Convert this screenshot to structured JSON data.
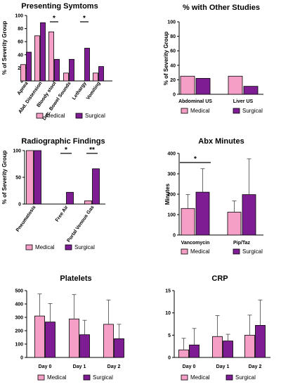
{
  "colors": {
    "medical": "#f59fc6",
    "surgical": "#7e1d93",
    "axis": "#000000"
  },
  "chart_data": [
    {
      "id": "symptoms",
      "type": "bar",
      "title": "Presenting Symtoms",
      "ylabel": "% of Severity Group",
      "ylim": [
        0,
        100
      ],
      "yticks": [
        0,
        20,
        40,
        60,
        80,
        100
      ],
      "categories": [
        "Apnea",
        "Abd. Distension",
        "Bloody stool",
        "Dec. Bowel Sounds",
        "Lethargy",
        "Vomiting"
      ],
      "series": [
        {
          "name": "Medical",
          "values": [
            25,
            69,
            75,
            12,
            0,
            12
          ]
        },
        {
          "name": "Surgical",
          "values": [
            44,
            89,
            33,
            33,
            50,
            22
          ]
        }
      ],
      "significance": [
        {
          "category": 2,
          "label": "*"
        },
        {
          "category": 4,
          "label": "*"
        }
      ],
      "legend": [
        "Medical",
        "Surgical"
      ]
    },
    {
      "id": "other-studies",
      "type": "bar",
      "title": "% with Other Studies",
      "ylabel": "% of Severity Group",
      "ylim": [
        0,
        100
      ],
      "yticks": [
        0,
        20,
        40,
        60,
        80,
        100
      ],
      "categories": [
        "Abdominal US",
        "Liver US"
      ],
      "series": [
        {
          "name": "Medical",
          "values": [
            25,
            25
          ]
        },
        {
          "name": "Surgical",
          "values": [
            22,
            11
          ]
        }
      ],
      "legend": [
        "Medical",
        "Surgical"
      ]
    },
    {
      "id": "radiographic",
      "type": "bar",
      "title": "Radiographic Findings",
      "ylabel": "% of Severity Group",
      "ylim": [
        0,
        100
      ],
      "yticks": [
        0,
        50,
        100
      ],
      "categories": [
        "Pneumatosis",
        "Free Air",
        "Portal Venous Gas"
      ],
      "series": [
        {
          "name": "Medical",
          "values": [
            100,
            0,
            6
          ]
        },
        {
          "name": "Surgical",
          "values": [
            100,
            22,
            66
          ]
        }
      ],
      "significance": [
        {
          "category": 1,
          "label": "*"
        },
        {
          "category": 2,
          "label": "**"
        }
      ],
      "legend": [
        "Medical",
        "Surgical"
      ]
    },
    {
      "id": "abx-minutes",
      "type": "bar",
      "title": "Abx Minutes",
      "ylabel": "Minutes",
      "ylim": [
        0,
        400
      ],
      "yticks": [
        0,
        100,
        200,
        300,
        400
      ],
      "categories": [
        "Vancomycin",
        "Pip/Taz"
      ],
      "series": [
        {
          "name": "Medical",
          "values": [
            130,
            112
          ],
          "error": [
            68,
            55
          ]
        },
        {
          "name": "Surgical",
          "values": [
            210,
            198
          ],
          "error": [
            115,
            175
          ]
        }
      ],
      "significance": [
        {
          "category": 0,
          "label": "*"
        }
      ],
      "legend": [
        "Medical",
        "Surgical"
      ]
    },
    {
      "id": "platelets",
      "type": "bar",
      "title": "Platelets",
      "ylabel": "",
      "ylim": [
        0,
        500
      ],
      "yticks": [
        0,
        100,
        200,
        300,
        400,
        500
      ],
      "categories": [
        "Day 0",
        "Day 1",
        "Day 2"
      ],
      "series": [
        {
          "name": "Medical",
          "values": [
            310,
            288,
            248
          ],
          "error": [
            165,
            182,
            182
          ]
        },
        {
          "name": "Surgical",
          "values": [
            265,
            170,
            140
          ],
          "error": [
            138,
            108,
            108
          ]
        }
      ],
      "legend": [
        "Medical",
        "Surgical"
      ]
    },
    {
      "id": "crp",
      "type": "bar",
      "title": "CRP",
      "ylabel": "",
      "ylim": [
        0,
        15
      ],
      "yticks": [
        0,
        5,
        10,
        15
      ],
      "categories": [
        "Day 0",
        "Day 1",
        "Day 2"
      ],
      "series": [
        {
          "name": "Medical",
          "values": [
            1.7,
            4.7,
            5.0
          ],
          "error": [
            2.6,
            4.7,
            4.5
          ]
        },
        {
          "name": "Surgical",
          "values": [
            2.8,
            3.7,
            7.2
          ],
          "error": [
            3.7,
            1.5,
            5.7
          ]
        }
      ],
      "legend": [
        "Medical",
        "Surgical"
      ]
    }
  ]
}
